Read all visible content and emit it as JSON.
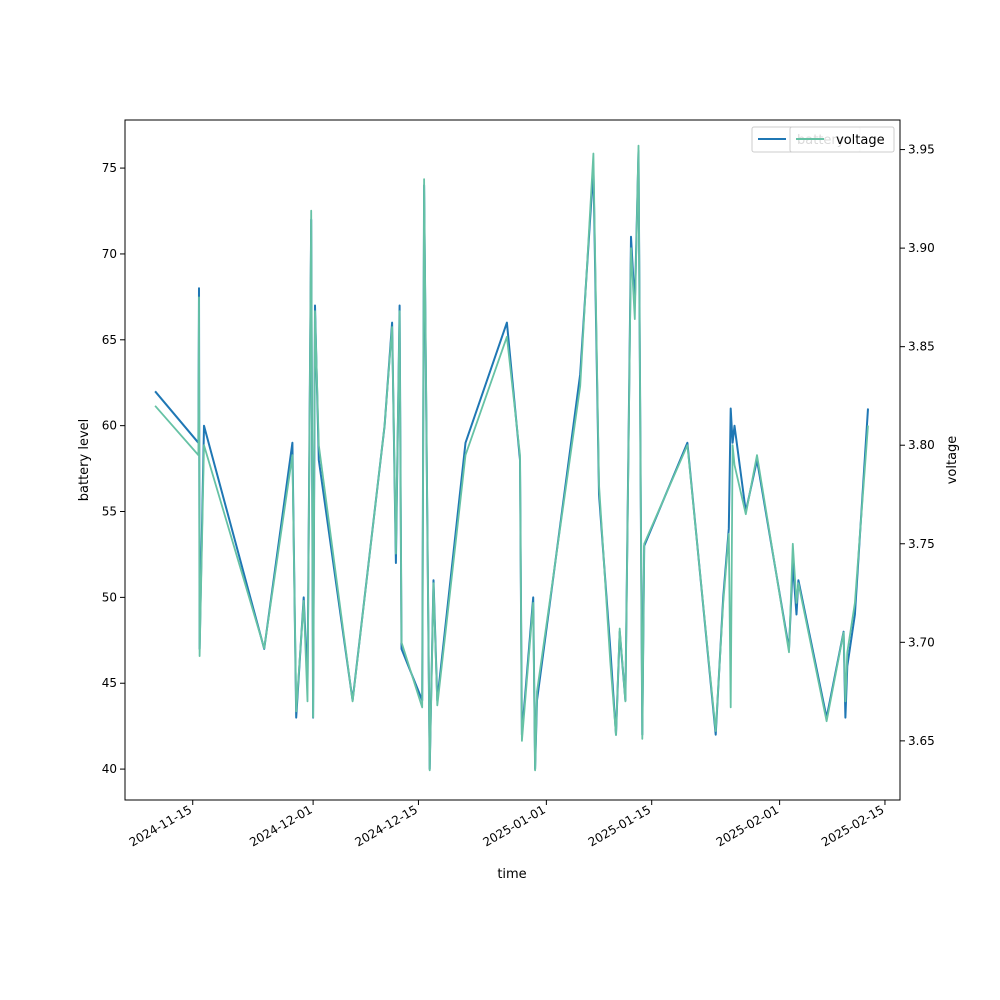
{
  "chart_data": {
    "type": "line",
    "title": "",
    "xlabel": "time",
    "ylabel_left": "battery level",
    "ylabel_right": "voltage",
    "grid": false,
    "legend_placement": "top-right",
    "legend_entries": [
      "battery",
      "voltage"
    ],
    "xlim": [
      "2024-11-06",
      "2025-02-17"
    ],
    "x_ticks": [
      "2024-11-15",
      "2024-12-01",
      "2024-12-15",
      "2025-01-01",
      "2025-01-15",
      "2025-02-01",
      "2025-02-15"
    ],
    "ylim_left": [
      38.2,
      77.8
    ],
    "y_ticks_left": [
      "40",
      "45",
      "50",
      "55",
      "60",
      "65",
      "70",
      "75"
    ],
    "ylim_right": [
      3.62,
      3.965
    ],
    "y_ticks_right": [
      "3.65",
      "3.70",
      "3.75",
      "3.80",
      "3.85",
      "3.90",
      "3.95"
    ],
    "series": [
      {
        "name": "battery",
        "axis": "left",
        "color": "#1f77b4",
        "points": [
          [
            "2024-11-10",
            62.0
          ],
          [
            "2024-11-15 18:00",
            59.0
          ],
          [
            "2024-11-15 20:00",
            68.0
          ],
          [
            "2024-11-15 22:00",
            47.0
          ],
          [
            "2024-11-16 12:00",
            60.0
          ],
          [
            "2024-11-24 12:00",
            47.0
          ],
          [
            "2024-11-28 06:00",
            59.0
          ],
          [
            "2024-11-28 18:00",
            43.0
          ],
          [
            "2024-11-29 18:00",
            50.0
          ],
          [
            "2024-11-30 06:00",
            45.0
          ],
          [
            "2024-11-30 18:00",
            72.0
          ],
          [
            "2024-12-01 00:00",
            43.0
          ],
          [
            "2024-12-01 06:00",
            67.0
          ],
          [
            "2024-12-01 18:00",
            58.0
          ],
          [
            "2024-12-06 06:00",
            44.0
          ],
          [
            "2024-12-10 12:00",
            60.0
          ],
          [
            "2024-12-11 12:00",
            66.0
          ],
          [
            "2024-12-12 00:00",
            52.0
          ],
          [
            "2024-12-12 12:00",
            67.0
          ],
          [
            "2024-12-12 18:00",
            47.0
          ],
          [
            "2024-12-15 12:00",
            44.0
          ],
          [
            "2024-12-15 18:00",
            74.0
          ],
          [
            "2024-12-16 12:00",
            40.0
          ],
          [
            "2024-12-17 00:00",
            51.0
          ],
          [
            "2024-12-17 12:00",
            44.0
          ],
          [
            "2024-12-21 06:00",
            59.0
          ],
          [
            "2024-12-26 18:00",
            66.0
          ],
          [
            "2024-12-28 12:00",
            58.0
          ],
          [
            "2024-12-28 18:00",
            42.0
          ],
          [
            "2024-12-30 06:00",
            50.0
          ],
          [
            "2024-12-30 12:00",
            40.0
          ],
          [
            "2024-12-30 18:00",
            44.0
          ],
          [
            "2025-01-05 12:00",
            63.0
          ],
          [
            "2025-01-07 06:00",
            75.0
          ],
          [
            "2025-01-08 00:00",
            56.0
          ],
          [
            "2025-01-09 12:00",
            47.0
          ],
          [
            "2025-01-10 06:00",
            42.0
          ],
          [
            "2025-01-10 18:00",
            48.0
          ],
          [
            "2025-01-11 12:00",
            44.0
          ],
          [
            "2025-01-12 06:00",
            71.0
          ],
          [
            "2025-01-12 18:00",
            67.0
          ],
          [
            "2025-01-13 06:00",
            76.0
          ],
          [
            "2025-01-13 18:00",
            42.0
          ],
          [
            "2025-01-14 00:00",
            53.0
          ],
          [
            "2025-01-19 18:00",
            59.0
          ],
          [
            "2025-01-23 12:00",
            42.0
          ],
          [
            "2025-01-24 12:00",
            50.0
          ],
          [
            "2025-01-25 06:00",
            54.0
          ],
          [
            "2025-01-25 12:00",
            61.0
          ],
          [
            "2025-01-25 18:00",
            59.0
          ],
          [
            "2025-01-26 00:00",
            60.0
          ],
          [
            "2025-01-27 12:00",
            55.0
          ],
          [
            "2025-01-29 00:00",
            58.0
          ],
          [
            "2025-02-02 06:00",
            47.0
          ],
          [
            "2025-02-02 18:00",
            52.0
          ],
          [
            "2025-02-03 06:00",
            49.0
          ],
          [
            "2025-02-03 12:00",
            51.0
          ],
          [
            "2025-02-07 06:00",
            43.0
          ],
          [
            "2025-02-09 12:00",
            48.0
          ],
          [
            "2025-02-09 18:00",
            43.0
          ],
          [
            "2025-02-10 00:00",
            46.0
          ],
          [
            "2025-02-11 00:00",
            49.0
          ],
          [
            "2025-02-12 18:00",
            61.0
          ]
        ]
      },
      {
        "name": "voltage",
        "axis": "right",
        "color": "#66c2a5",
        "points": [
          [
            "2024-11-10",
            3.82
          ],
          [
            "2024-11-15 18:00",
            3.795
          ],
          [
            "2024-11-15 20:00",
            3.875
          ],
          [
            "2024-11-15 22:00",
            3.693
          ],
          [
            "2024-11-16 12:00",
            3.8
          ],
          [
            "2024-11-24 12:00",
            3.697
          ],
          [
            "2024-11-28 06:00",
            3.795
          ],
          [
            "2024-11-28 18:00",
            3.665
          ],
          [
            "2024-11-29 18:00",
            3.721
          ],
          [
            "2024-11-30 06:00",
            3.67
          ],
          [
            "2024-11-30 18:00",
            3.919
          ],
          [
            "2024-12-01 00:00",
            3.662
          ],
          [
            "2024-12-01 06:00",
            3.868
          ],
          [
            "2024-12-01 18:00",
            3.8
          ],
          [
            "2024-12-06 06:00",
            3.67
          ],
          [
            "2024-12-10 12:00",
            3.81
          ],
          [
            "2024-12-11 12:00",
            3.86
          ],
          [
            "2024-12-12 00:00",
            3.745
          ],
          [
            "2024-12-12 12:00",
            3.868
          ],
          [
            "2024-12-12 18:00",
            3.7
          ],
          [
            "2024-12-15 12:00",
            3.667
          ],
          [
            "2024-12-15 18:00",
            3.935
          ],
          [
            "2024-12-16 12:00",
            3.635
          ],
          [
            "2024-12-17 00:00",
            3.73
          ],
          [
            "2024-12-17 12:00",
            3.668
          ],
          [
            "2024-12-21 06:00",
            3.795
          ],
          [
            "2024-12-26 18:00",
            3.855
          ],
          [
            "2024-12-28 12:00",
            3.795
          ],
          [
            "2024-12-28 18:00",
            3.65
          ],
          [
            "2024-12-30 06:00",
            3.72
          ],
          [
            "2024-12-30 12:00",
            3.635
          ],
          [
            "2024-12-30 18:00",
            3.675
          ],
          [
            "2025-01-05 12:00",
            3.83
          ],
          [
            "2025-01-07 06:00",
            3.948
          ],
          [
            "2025-01-08 00:00",
            3.78
          ],
          [
            "2025-01-09 12:00",
            3.69
          ],
          [
            "2025-01-10 06:00",
            3.653
          ],
          [
            "2025-01-10 18:00",
            3.707
          ],
          [
            "2025-01-11 12:00",
            3.67
          ],
          [
            "2025-01-12 06:00",
            3.9
          ],
          [
            "2025-01-12 18:00",
            3.864
          ],
          [
            "2025-01-13 06:00",
            3.952
          ],
          [
            "2025-01-13 18:00",
            3.651
          ],
          [
            "2025-01-14 00:00",
            3.75
          ],
          [
            "2025-01-19 18:00",
            3.8
          ],
          [
            "2025-01-23 12:00",
            3.655
          ],
          [
            "2025-01-24 12:00",
            3.72
          ],
          [
            "2025-01-25 06:00",
            3.755
          ],
          [
            "2025-01-25 12:00",
            3.667
          ],
          [
            "2025-01-25 18:00",
            3.8
          ],
          [
            "2025-01-26 00:00",
            3.79
          ],
          [
            "2025-01-27 12:00",
            3.765
          ],
          [
            "2025-01-29 00:00",
            3.795
          ],
          [
            "2025-02-02 06:00",
            3.695
          ],
          [
            "2025-02-02 18:00",
            3.75
          ],
          [
            "2025-02-03 06:00",
            3.72
          ],
          [
            "2025-02-03 12:00",
            3.73
          ],
          [
            "2025-02-07 06:00",
            3.66
          ],
          [
            "2025-02-09 12:00",
            3.705
          ],
          [
            "2025-02-09 18:00",
            3.67
          ],
          [
            "2025-02-10 00:00",
            3.695
          ],
          [
            "2025-02-11 00:00",
            3.72
          ],
          [
            "2025-02-12 18:00",
            3.81
          ]
        ]
      }
    ]
  }
}
